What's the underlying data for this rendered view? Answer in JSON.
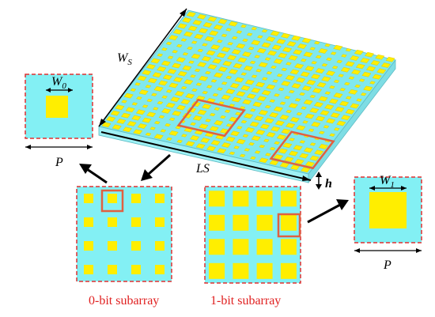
{
  "labels": {
    "ws": "W",
    "ws_sub": "S",
    "ls": "LS",
    "h": "h",
    "p_left": "P",
    "p_right": "P",
    "w0": "W",
    "w0_sub": "0",
    "w1": "W",
    "w1_sub": "1",
    "subarray_0": "0-bit subarray",
    "subarray_1": "1-bit subarray"
  },
  "colors": {
    "substrate_top": "#80e8ee",
    "substrate_front": "#9ef0f4",
    "substrate_side": "#7edde4",
    "patch": "#ffee00",
    "patch_edge": "#d8c400",
    "highlight": "#e06040",
    "dashed_border": "#e03030",
    "caption": "#e02020",
    "cell_bg": "#83f0f4"
  }
}
